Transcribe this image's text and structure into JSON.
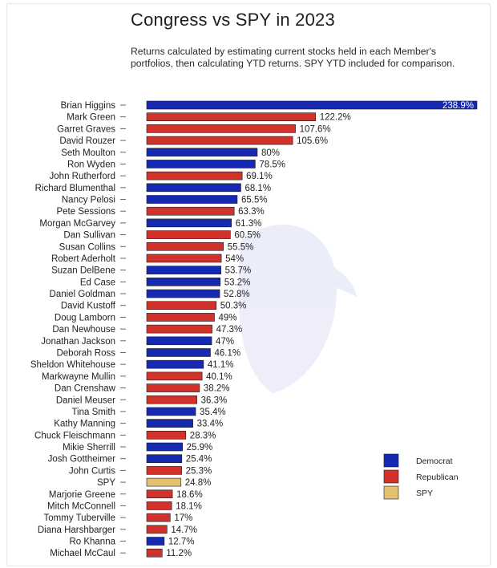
{
  "colors": {
    "Democrat": "#1529b3",
    "Republican": "#d1322b",
    "SPY": "#e5c06e"
  },
  "chart_data": {
    "type": "bar",
    "orientation": "horizontal",
    "title": "Congress vs SPY in 2023",
    "subtitle": "Returns calculated by estimating current stocks held in each Member's portfolios, then calculating YTD returns. SPY YTD included for comparison.",
    "xlabel": "",
    "ylabel": "",
    "legend": {
      "position": "bottom-right",
      "entries": [
        "Democrat",
        "Republican",
        "SPY"
      ]
    },
    "grid": false,
    "bars": [
      {
        "name": "Brian Higgins",
        "value": 238.9,
        "label": "238.9%",
        "group": "Democrat"
      },
      {
        "name": "Mark Green",
        "value": 122.2,
        "label": "122.2%",
        "group": "Republican"
      },
      {
        "name": "Garret Graves",
        "value": 107.6,
        "label": "107.6%",
        "group": "Republican"
      },
      {
        "name": "David Rouzer",
        "value": 105.6,
        "label": "105.6%",
        "group": "Republican"
      },
      {
        "name": "Seth Moulton",
        "value": 80,
        "label": "80%",
        "group": "Democrat"
      },
      {
        "name": "Ron Wyden",
        "value": 78.5,
        "label": "78.5%",
        "group": "Democrat"
      },
      {
        "name": "John Rutherford",
        "value": 69.1,
        "label": "69.1%",
        "group": "Republican"
      },
      {
        "name": "Richard Blumenthal",
        "value": 68.1,
        "label": "68.1%",
        "group": "Democrat"
      },
      {
        "name": "Nancy Pelosi",
        "value": 65.5,
        "label": "65.5%",
        "group": "Democrat"
      },
      {
        "name": "Pete Sessions",
        "value": 63.3,
        "label": "63.3%",
        "group": "Republican"
      },
      {
        "name": "Morgan McGarvey",
        "value": 61.3,
        "label": "61.3%",
        "group": "Democrat"
      },
      {
        "name": "Dan Sullivan",
        "value": 60.5,
        "label": "60.5%",
        "group": "Republican"
      },
      {
        "name": "Susan Collins",
        "value": 55.5,
        "label": "55.5%",
        "group": "Republican"
      },
      {
        "name": "Robert Aderholt",
        "value": 54,
        "label": "54%",
        "group": "Republican"
      },
      {
        "name": "Suzan DelBene",
        "value": 53.7,
        "label": "53.7%",
        "group": "Democrat"
      },
      {
        "name": "Ed Case",
        "value": 53.2,
        "label": "53.2%",
        "group": "Democrat"
      },
      {
        "name": "Daniel Goldman",
        "value": 52.8,
        "label": "52.8%",
        "group": "Democrat"
      },
      {
        "name": "David Kustoff",
        "value": 50.3,
        "label": "50.3%",
        "group": "Republican"
      },
      {
        "name": "Doug Lamborn",
        "value": 49,
        "label": "49%",
        "group": "Republican"
      },
      {
        "name": "Dan Newhouse",
        "value": 47.3,
        "label": "47.3%",
        "group": "Republican"
      },
      {
        "name": "Jonathan Jackson",
        "value": 47,
        "label": "47%",
        "group": "Democrat"
      },
      {
        "name": "Deborah Ross",
        "value": 46.1,
        "label": "46.1%",
        "group": "Democrat"
      },
      {
        "name": "Sheldon Whitehouse",
        "value": 41.1,
        "label": "41.1%",
        "group": "Democrat"
      },
      {
        "name": "Markwayne Mullin",
        "value": 40.1,
        "label": "40.1%",
        "group": "Republican"
      },
      {
        "name": "Dan Crenshaw",
        "value": 38.2,
        "label": "38.2%",
        "group": "Republican"
      },
      {
        "name": "Daniel Meuser",
        "value": 36.3,
        "label": "36.3%",
        "group": "Republican"
      },
      {
        "name": "Tina Smith",
        "value": 35.4,
        "label": "35.4%",
        "group": "Democrat"
      },
      {
        "name": "Kathy Manning",
        "value": 33.4,
        "label": "33.4%",
        "group": "Democrat"
      },
      {
        "name": "Chuck Fleischmann",
        "value": 28.3,
        "label": "28.3%",
        "group": "Republican"
      },
      {
        "name": "Mikie Sherrill",
        "value": 25.9,
        "label": "25.9%",
        "group": "Democrat"
      },
      {
        "name": "Josh Gottheimer",
        "value": 25.4,
        "label": "25.4%",
        "group": "Democrat"
      },
      {
        "name": "John Curtis",
        "value": 25.3,
        "label": "25.3%",
        "group": "Republican"
      },
      {
        "name": "SPY",
        "value": 24.8,
        "label": "24.8%",
        "group": "SPY"
      },
      {
        "name": "Marjorie Greene",
        "value": 18.6,
        "label": "18.6%",
        "group": "Republican"
      },
      {
        "name": "Mitch McConnell",
        "value": 18.1,
        "label": "18.1%",
        "group": "Republican"
      },
      {
        "name": "Tommy Tuberville",
        "value": 17,
        "label": "17%",
        "group": "Republican"
      },
      {
        "name": "Diana Harshbarger",
        "value": 14.7,
        "label": "14.7%",
        "group": "Republican"
      },
      {
        "name": "Ro Khanna",
        "value": 12.7,
        "label": "12.7%",
        "group": "Democrat"
      },
      {
        "name": "Michael McCaul",
        "value": 11.2,
        "label": "11.2%",
        "group": "Republican"
      }
    ]
  }
}
